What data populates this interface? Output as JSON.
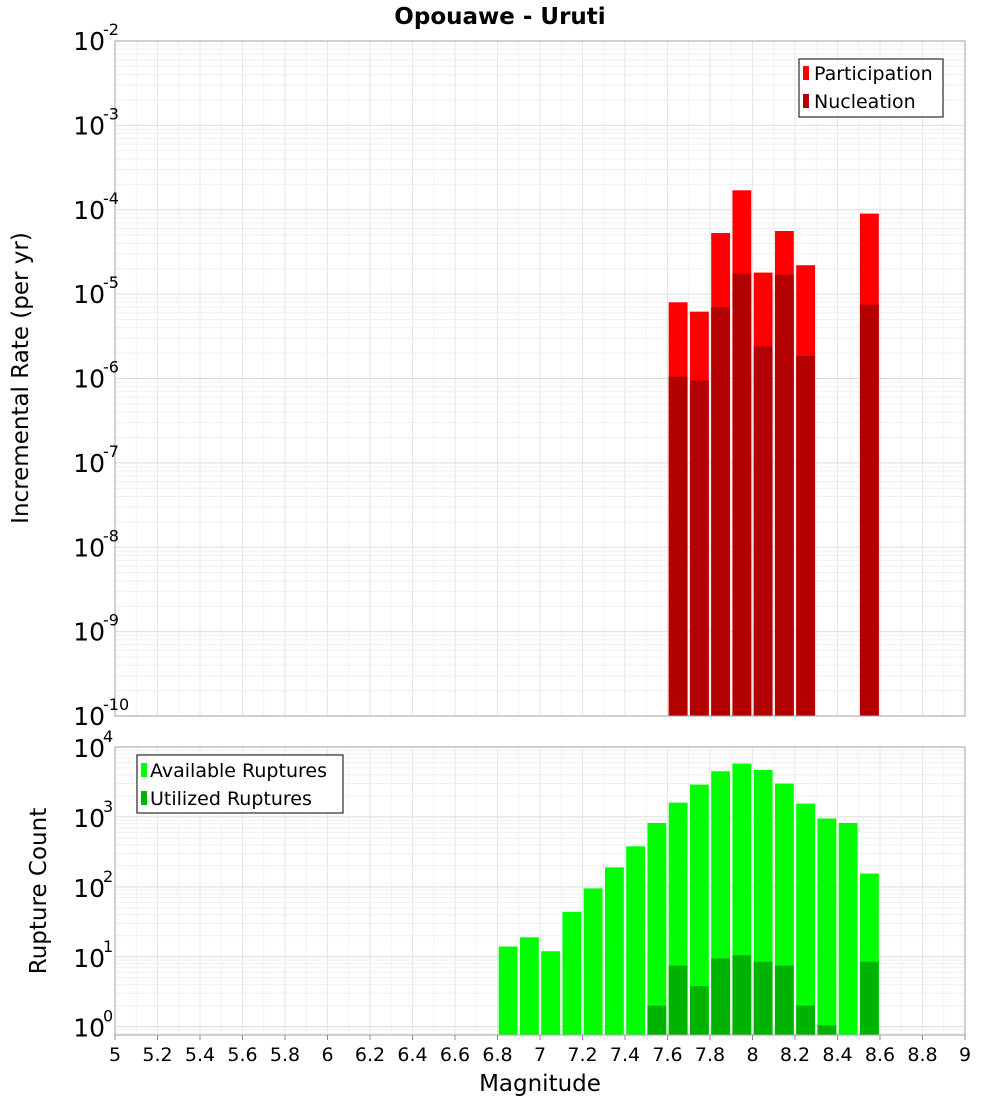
{
  "title": "Opouawe - Uruti",
  "chart_data": [
    {
      "type": "bar",
      "scale": "log",
      "ylabel": "Incremental Rate (per yr)",
      "xlim": [
        5,
        9
      ],
      "ylim": [
        1e-10,
        0.01
      ],
      "y_tick_labels": [
        {
          "base": "10",
          "exp": "-10",
          "value": 1e-10
        },
        {
          "base": "10",
          "exp": "-9",
          "value": 1e-09
        },
        {
          "base": "10",
          "exp": "-8",
          "value": 1e-08
        },
        {
          "base": "10",
          "exp": "-7",
          "value": 1e-07
        },
        {
          "base": "10",
          "exp": "-6",
          "value": 1e-06
        },
        {
          "base": "10",
          "exp": "-5",
          "value": 1e-05
        },
        {
          "base": "10",
          "exp": "-4",
          "value": 0.0001
        },
        {
          "base": "10",
          "exp": "-3",
          "value": 0.001
        },
        {
          "base": "10",
          "exp": "-2",
          "value": 0.01
        }
      ],
      "grid": true,
      "legend_position": "top-right",
      "bin_width": 0.1,
      "series": [
        {
          "name": "Participation",
          "color": "#ff0000",
          "x": [
            7.65,
            7.75,
            7.85,
            7.95,
            8.05,
            8.15,
            8.25,
            8.55
          ],
          "values": [
            8e-06,
            6.2e-06,
            5.3e-05,
            0.00017,
            1.8e-05,
            5.6e-05,
            2.2e-05,
            9e-05
          ]
        },
        {
          "name": "Nucleation",
          "color": "#b30000",
          "x": [
            7.65,
            7.75,
            7.85,
            7.95,
            8.05,
            8.15,
            8.25,
            8.55
          ],
          "values": [
            1.05e-06,
            9.5e-07,
            7e-06,
            1.75e-05,
            2.4e-06,
            1.7e-05,
            1.85e-06,
            7.5e-06
          ]
        }
      ]
    },
    {
      "type": "bar",
      "scale": "log",
      "ylabel": "Rupture Count",
      "xlabel": "Magnitude",
      "xlim": [
        5,
        9
      ],
      "ylim": [
        0.76,
        10000
      ],
      "x_ticks": [
        "5",
        "5.2",
        "5.4",
        "5.6",
        "5.8",
        "6",
        "6.2",
        "6.4",
        "6.6",
        "6.8",
        "7",
        "7.2",
        "7.4",
        "7.6",
        "7.8",
        "8",
        "8.2",
        "8.4",
        "8.6",
        "8.8",
        "9"
      ],
      "y_tick_labels": [
        {
          "base": "10",
          "exp": "0",
          "value": 1
        },
        {
          "base": "10",
          "exp": "1",
          "value": 10
        },
        {
          "base": "10",
          "exp": "2",
          "value": 100
        },
        {
          "base": "10",
          "exp": "3",
          "value": 1000
        },
        {
          "base": "10",
          "exp": "4",
          "value": 10000
        }
      ],
      "grid": true,
      "legend_position": "top-left",
      "bin_width": 0.1,
      "series": [
        {
          "name": "Available Ruptures",
          "color": "#00ff00",
          "x": [
            6.85,
            6.95,
            7.05,
            7.15,
            7.25,
            7.35,
            7.45,
            7.55,
            7.65,
            7.75,
            7.85,
            7.95,
            8.05,
            8.15,
            8.25,
            8.35,
            8.45,
            8.55
          ],
          "values": [
            14,
            19,
            12,
            44,
            95,
            190,
            380,
            820,
            1600,
            2900,
            4500,
            5800,
            4700,
            3000,
            1550,
            950,
            820,
            155
          ]
        },
        {
          "name": "Utilized Ruptures",
          "color": "#00b300",
          "x": [
            7.55,
            7.65,
            7.75,
            7.85,
            7.95,
            8.05,
            8.15,
            8.25,
            8.35,
            8.55
          ],
          "values": [
            2,
            7.5,
            3.8,
            9.5,
            10.5,
            8.5,
            7.5,
            2,
            1.05,
            8.5
          ]
        }
      ]
    }
  ]
}
